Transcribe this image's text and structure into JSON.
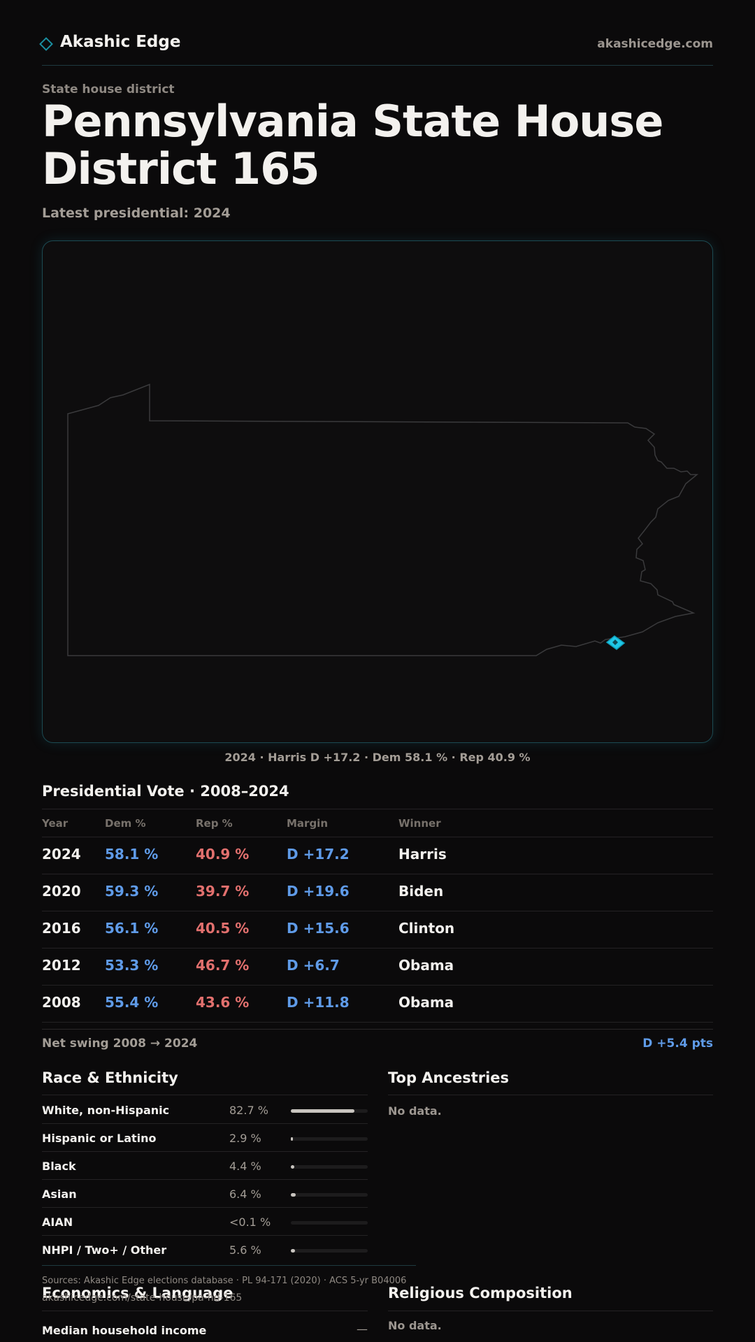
{
  "header": {
    "brand": "Akashic Edge",
    "site": "akashicedge.com"
  },
  "page": {
    "kicker": "State house district",
    "title": "Pennsylvania State House District 165",
    "latest": "Latest presidential: 2024"
  },
  "map": {
    "caption": "2024 · Harris D +17.2 · Dem 58.1 % · Rep 40.9 %",
    "highlight_color": "#1fc8e8",
    "outline_color": "#3a3a3c"
  },
  "presidential": {
    "title": "Presidential Vote · 2008–2024",
    "columns": [
      "Year",
      "Dem %",
      "Rep %",
      "Margin",
      "Winner"
    ],
    "rows": [
      {
        "year": "2024",
        "dem": "58.1 %",
        "rep": "40.9 %",
        "margin": "D +17.2",
        "winner": "Harris"
      },
      {
        "year": "2020",
        "dem": "59.3 %",
        "rep": "39.7 %",
        "margin": "D +19.6",
        "winner": "Biden"
      },
      {
        "year": "2016",
        "dem": "56.1 %",
        "rep": "40.5 %",
        "margin": "D +15.6",
        "winner": "Clinton"
      },
      {
        "year": "2012",
        "dem": "53.3 %",
        "rep": "46.7 %",
        "margin": "D +6.7",
        "winner": "Obama"
      },
      {
        "year": "2008",
        "dem": "55.4 %",
        "rep": "43.6 %",
        "margin": "D +11.8",
        "winner": "Obama"
      }
    ],
    "swing_label": "Net swing 2008 → 2024",
    "swing_value": "D +5.4 pts"
  },
  "race": {
    "title": "Race & Ethnicity",
    "rows": [
      {
        "label": "White, non-Hispanic",
        "value": "82.7 %",
        "fraction": 0.827
      },
      {
        "label": "Hispanic or Latino",
        "value": "2.9 %",
        "fraction": 0.029
      },
      {
        "label": "Black",
        "value": "4.4 %",
        "fraction": 0.044
      },
      {
        "label": "Asian",
        "value": "6.4 %",
        "fraction": 0.064
      },
      {
        "label": "AIAN",
        "value": "<0.1 %",
        "fraction": 0.0
      },
      {
        "label": "NHPI / Two+ / Other",
        "value": "5.6 %",
        "fraction": 0.056
      }
    ]
  },
  "ancestries": {
    "title": "Top Ancestries",
    "empty": "No data."
  },
  "footer": {
    "sources": "Sources: Akashic Edge elections database · PL 94-171 (2020) · ACS 5-yr B04006",
    "url": "akashicedge.com/state-house/pa-hd-165"
  },
  "economics": {
    "title": "Economics & Language",
    "median_label": "Median household income",
    "median_value": "—"
  },
  "religion": {
    "title": "Religious Composition",
    "empty": "No data."
  }
}
